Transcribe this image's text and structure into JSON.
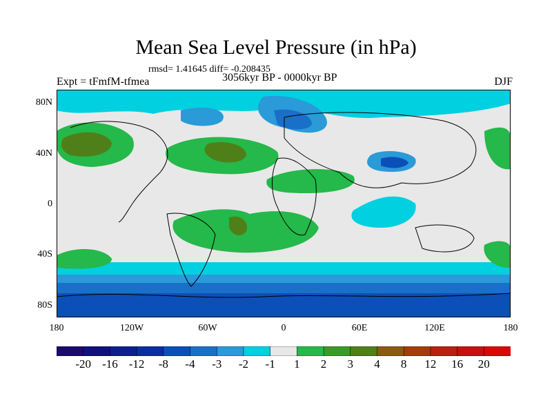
{
  "map": {
    "title": "Mean Sea Level Pressure (in hPa)",
    "stats": "rmsd= 1.41645  diff= -0.208435",
    "experiment": "Expt = tFmfM-tfmea",
    "period": "3056kyr BP - 0000kyr BP",
    "season": "DJF",
    "lat_ticks": [
      "80N",
      "40N",
      "0",
      "40S",
      "80S"
    ],
    "lon_ticks": [
      "180",
      "120W",
      "60W",
      "0",
      "60E",
      "120E",
      "180"
    ]
  },
  "colorbar": {
    "labels": [
      "-20",
      "-16",
      "-12",
      "-8",
      "-4",
      "-3",
      "-2",
      "-1",
      "1",
      "2",
      "3",
      "4",
      "8",
      "12",
      "16",
      "20"
    ],
    "colors": [
      "#1a0a6b",
      "#10107f",
      "#0d1f8f",
      "#0a2fa0",
      "#0c4fb8",
      "#1a6fc8",
      "#2a9ad8",
      "#00d0e0",
      "#e8e8e8",
      "#25b84a",
      "#3a9a28",
      "#4f7f18",
      "#8a5a10",
      "#a43c0c",
      "#b82010",
      "#c81010",
      "#d80808"
    ]
  },
  "legend": {
    "neg_strong": "#0a2fa0",
    "neg_mid": "#1a6fc8",
    "neg_light": "#2a9ad8",
    "neg_weak": "#00d0e0",
    "neutral": "#e8e8e8",
    "pos_weak": "#25b84a",
    "pos_mid": "#3a9a28",
    "pos_strong": "#4f7f18"
  }
}
